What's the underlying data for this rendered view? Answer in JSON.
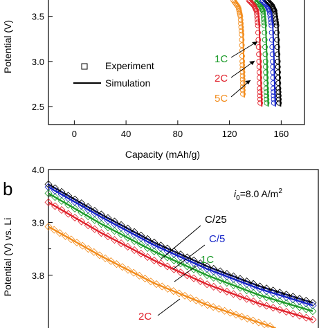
{
  "chart_data": [
    {
      "panel": "",
      "type": "line",
      "xlabel": "Capacity (mAh/g)",
      "ylabel": "Potential (V)",
      "xlim": [
        -20,
        178
      ],
      "ylim": [
        2.3,
        3.72
      ],
      "xticks": [
        0,
        40,
        80,
        120,
        160
      ],
      "yticks": [
        2.5,
        3.0,
        3.5
      ],
      "ytick_labels": [
        "2.5",
        "3.0",
        "3.5"
      ],
      "legend": {
        "placement": "center-left",
        "entries": [
          {
            "label": "Experiment",
            "marker": "open-square"
          },
          {
            "label": "Simulation",
            "marker": "line"
          }
        ]
      },
      "annotations": [
        {
          "text": "1C",
          "color": "#1a9a28",
          "target": "1C curve"
        },
        {
          "text": "2C",
          "color": "#e0202a",
          "target": "2C curve"
        },
        {
          "text": "5C",
          "color": "#f28c1c",
          "target": "5C curve"
        }
      ],
      "series": [
        {
          "name": "1C",
          "color": "#1a9a28",
          "x_end": 150,
          "x": [
            140,
            145,
            147,
            148,
            149,
            149.5,
            150
          ],
          "y": [
            3.68,
            3.62,
            3.56,
            3.4,
            3.0,
            2.7,
            2.5
          ]
        },
        {
          "name": "2C",
          "color": "#e0202a",
          "x_end": 145,
          "x": [
            136,
            140,
            142,
            143,
            144,
            144.5,
            145
          ],
          "y": [
            3.68,
            3.62,
            3.56,
            3.4,
            3.0,
            2.7,
            2.5
          ]
        },
        {
          "name": "5C",
          "color": "#f28c1c",
          "x_end": 131,
          "x": [
            124,
            128,
            129.5,
            130.5,
            131,
            131.3,
            131.5
          ],
          "y": [
            3.68,
            3.6,
            3.5,
            3.3,
            3.0,
            2.8,
            2.6
          ]
        },
        {
          "name": "C/5",
          "color": "#1424c8",
          "x_end": 155,
          "x": [
            146,
            150,
            152,
            153.5,
            154.5,
            155,
            155.5
          ],
          "y": [
            3.68,
            3.62,
            3.56,
            3.4,
            3.0,
            2.7,
            2.5
          ]
        },
        {
          "name": "C/25",
          "color": "#000000",
          "x_end": 159,
          "x": [
            150,
            154,
            156,
            157.5,
            158.5,
            159,
            159.5
          ],
          "y": [
            3.68,
            3.62,
            3.56,
            3.4,
            3.0,
            2.7,
            2.5
          ]
        }
      ]
    },
    {
      "panel": "b",
      "type": "line",
      "xlabel": "",
      "ylabel": "Potential (V) vs. Li",
      "ylim": [
        3.695,
        4.0
      ],
      "yticks": [
        3.8,
        3.9,
        4.0
      ],
      "ytick_labels": [
        "3.8",
        "3.9",
        "4.0"
      ],
      "xlim": [
        0,
        1
      ],
      "annotation_i0": {
        "symbol": "i",
        "subscript": "0",
        "text": "=8.0 A/m",
        "superscript": "2"
      },
      "annotations": [
        {
          "text": "C/25",
          "color": "#000000",
          "target": "C/25 curve"
        },
        {
          "text": "C/5",
          "color": "#1424c8",
          "target": "C/5 curve"
        },
        {
          "text": "1C",
          "color": "#1a9a28",
          "target": "1C curve"
        },
        {
          "text": "2C",
          "color": "#e0202a",
          "target": "2C curve"
        }
      ],
      "series": [
        {
          "name": "C/25",
          "color": "#000000",
          "x": [
            0,
            0.2,
            0.4,
            0.6,
            0.8,
            1.0
          ],
          "y": [
            3.972,
            3.915,
            3.862,
            3.817,
            3.779,
            3.748
          ]
        },
        {
          "name": "C/5",
          "color": "#1424c8",
          "x": [
            0,
            0.2,
            0.4,
            0.6,
            0.8,
            1.0
          ],
          "y": [
            3.967,
            3.91,
            3.857,
            3.812,
            3.774,
            3.743
          ]
        },
        {
          "name": "1C",
          "color": "#1a9a28",
          "x": [
            0,
            0.2,
            0.4,
            0.6,
            0.8,
            1.0
          ],
          "y": [
            3.955,
            3.897,
            3.845,
            3.8,
            3.762,
            3.732
          ]
        },
        {
          "name": "2C",
          "color": "#e0202a",
          "x": [
            0,
            0.2,
            0.4,
            0.6,
            0.8,
            1.0
          ],
          "y": [
            3.938,
            3.88,
            3.828,
            3.783,
            3.746,
            3.716
          ]
        },
        {
          "name": "5C",
          "color": "#f28c1c",
          "x": [
            0,
            0.2,
            0.4,
            0.6,
            0.8,
            0.86
          ],
          "y": [
            3.892,
            3.836,
            3.785,
            3.744,
            3.71,
            3.7
          ]
        }
      ]
    }
  ]
}
